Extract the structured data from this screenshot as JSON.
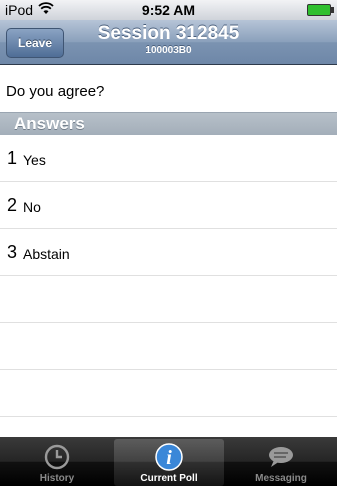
{
  "status_bar": {
    "carrier": "iPod",
    "wifi_icon": "wifi-icon",
    "time": "9:52 AM",
    "battery_icon": "battery-charging-icon"
  },
  "nav": {
    "leave_label": "Leave",
    "title": "Session 312845",
    "subtitle": "100003B0"
  },
  "question": {
    "text": "Do you agree?"
  },
  "answers": {
    "header": "Answers",
    "items": [
      {
        "number": "1",
        "label": "Yes"
      },
      {
        "number": "2",
        "label": "No"
      },
      {
        "number": "3",
        "label": "Abstain"
      }
    ]
  },
  "tabbar": {
    "tabs": [
      {
        "label": "History",
        "icon": "clock-icon",
        "active": false
      },
      {
        "label": "Current Poll",
        "icon": "info-circle-icon",
        "active": true
      },
      {
        "label": "Messaging",
        "icon": "speech-bubble-icon",
        "active": false
      }
    ]
  },
  "colors": {
    "nav_bar": "#8aa0bb",
    "section_header": "#a3aeb9",
    "tab_bar": "#111111",
    "active_tab_icon": "#3a87d8"
  }
}
